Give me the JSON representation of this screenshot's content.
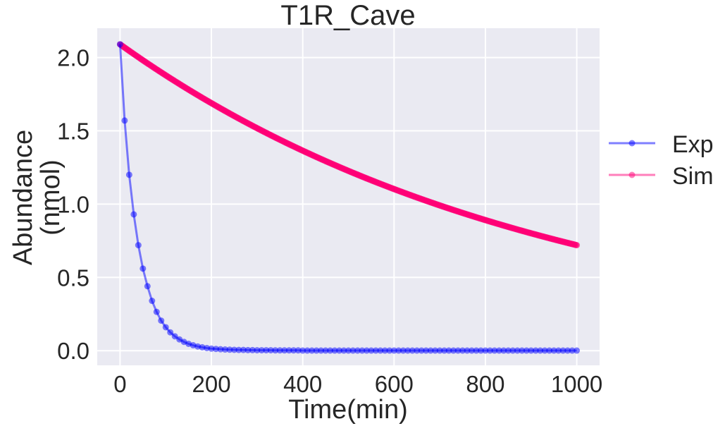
{
  "chart_data": {
    "type": "line",
    "title": "T1R_Cave",
    "xlabel": "Time(min)",
    "ylabel_lines": [
      "Abundance",
      "(nmol)"
    ],
    "xlim": [
      -50,
      1050
    ],
    "ylim": [
      -0.1,
      2.2
    ],
    "xticks": [
      0,
      200,
      400,
      600,
      800,
      1000
    ],
    "xtick_labels": [
      "0",
      "200",
      "400",
      "600",
      "800",
      "1000"
    ],
    "yticks": [
      0.0,
      0.5,
      1.0,
      1.5,
      2.0
    ],
    "ytick_labels": [
      "0.0",
      "0.5",
      "1.0",
      "1.5",
      "2.0"
    ],
    "grid": true,
    "legend_position": "outside-right",
    "background": "#eaeaf2",
    "series": [
      {
        "name": "Exp",
        "color": "#0000ff",
        "x": [
          0,
          10,
          20,
          30,
          40,
          50,
          60,
          70,
          80,
          90,
          100,
          110,
          120,
          130,
          140,
          150,
          160,
          170,
          180,
          190,
          200,
          210,
          220,
          230,
          240,
          250,
          260,
          270,
          280,
          290,
          300,
          310,
          320,
          330,
          340,
          350,
          360,
          370,
          380,
          390,
          400,
          410,
          420,
          430,
          440,
          450,
          460,
          470,
          480,
          490,
          500,
          510,
          520,
          530,
          540,
          550,
          560,
          570,
          580,
          590,
          600,
          610,
          620,
          630,
          640,
          650,
          660,
          670,
          680,
          690,
          700,
          710,
          720,
          730,
          740,
          750,
          760,
          770,
          780,
          790,
          800,
          810,
          820,
          830,
          840,
          850,
          860,
          870,
          880,
          890,
          900,
          910,
          920,
          930,
          940,
          950,
          960,
          970,
          980,
          990,
          1000
        ],
        "y": [
          2.09,
          1.57,
          1.2,
          0.93,
          0.72,
          0.56,
          0.44,
          0.34,
          0.265,
          0.205,
          0.16,
          0.125,
          0.098,
          0.077,
          0.06,
          0.047,
          0.037,
          0.029,
          0.023,
          0.018,
          0.014,
          0.012,
          0.01,
          0.008,
          0.007,
          0.006,
          0.005,
          0.005,
          0.004,
          0.004,
          0.003,
          0.003,
          0.003,
          0.003,
          0.002,
          0.002,
          0.002,
          0.002,
          0.002,
          0.002,
          0.001,
          0.001,
          0.001,
          0.001,
          0.001,
          0.001,
          0.001,
          0.001,
          0.001,
          0.001,
          0.001,
          0.001,
          0.001,
          0.001,
          0.001,
          0.001,
          0.001,
          0.001,
          0.001,
          0.001,
          0.001,
          0.001,
          0.001,
          0.001,
          0.001,
          0.001,
          0.001,
          0.001,
          0.001,
          0.001,
          0.001,
          0.001,
          0.001,
          0.001,
          0.001,
          0.001,
          0.001,
          0.001,
          0.001,
          0.001,
          0.001,
          0.001,
          0.001,
          0.001,
          0.001,
          0.001,
          0.001,
          0.001,
          0.001,
          0.001,
          0.001,
          0.001,
          0.001,
          0.001,
          0.001,
          0.001,
          0.001,
          0.001,
          0.001,
          0.001,
          0.001
        ]
      },
      {
        "name": "Sim",
        "color": "#ff0077",
        "x_start": 0,
        "x_end": 1000,
        "y_start": 2.09,
        "y_end": 0.72,
        "shape": "exponential decay"
      }
    ]
  }
}
